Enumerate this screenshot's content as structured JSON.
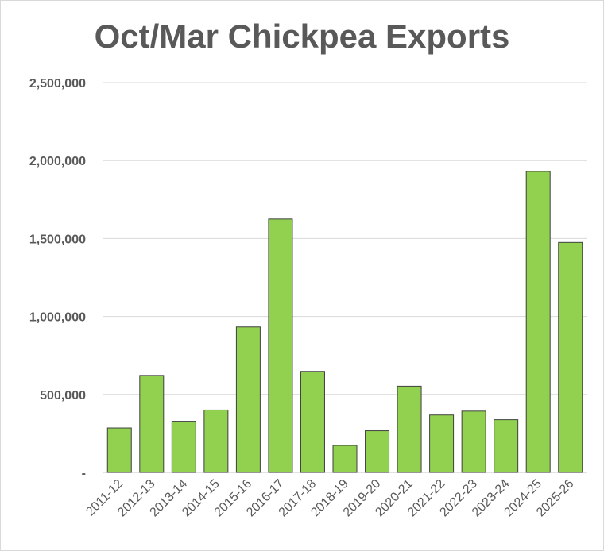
{
  "chart_data": {
    "type": "bar",
    "title": "Oct/Mar Chickpea Exports",
    "xlabel": "",
    "ylabel": "",
    "categories": [
      "2011-12",
      "2012-13",
      "2013-14",
      "2014-15",
      "2015-16",
      "2016-17",
      "2017-18",
      "2018-19",
      "2019-20",
      "2020-21",
      "2021-22",
      "2022-23",
      "2023-24",
      "2024-25",
      "2025-26"
    ],
    "values": [
      285000,
      622000,
      328000,
      400000,
      933000,
      1625000,
      648000,
      173000,
      267000,
      553000,
      368000,
      393000,
      338000,
      1930000,
      1475000
    ],
    "ylim": [
      0,
      2500000
    ],
    "yticks": [
      0,
      500000,
      1000000,
      1500000,
      2000000,
      2500000
    ],
    "ytick_labels": [
      "-",
      "500,000",
      "1,000,000",
      "1,500,000",
      "2,000,000",
      "2,500,000"
    ],
    "grid": true,
    "legend": "none",
    "bar_color": "#92d050",
    "bar_edge_color": "#404040",
    "grid_color": "#d9d9d9"
  }
}
